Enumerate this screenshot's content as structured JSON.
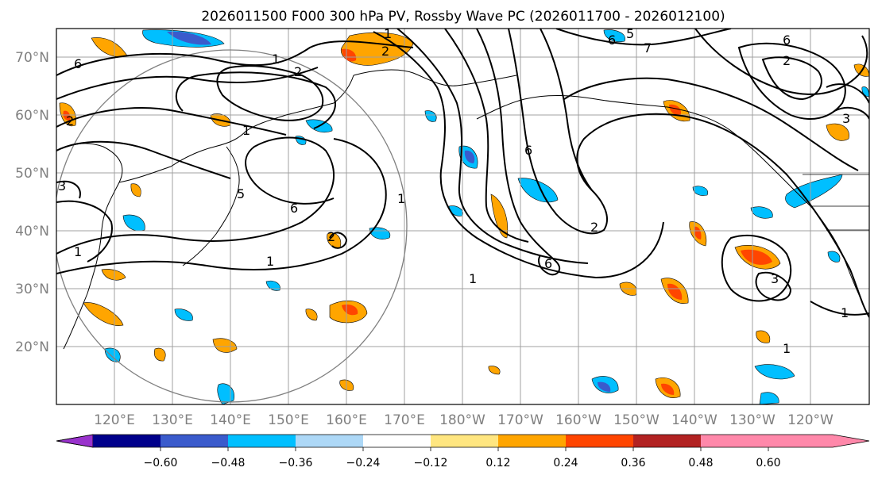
{
  "title": "2026011500 F000 300 hPa PV, Rossby Wave PC (2026011700 - 2026012100)",
  "map": {
    "lat_ticks": [
      {
        "label": "70°N",
        "value": 70
      },
      {
        "label": "60°N",
        "value": 60
      },
      {
        "label": "50°N",
        "value": 50
      },
      {
        "label": "40°N",
        "value": 40
      },
      {
        "label": "30°N",
        "value": 30
      },
      {
        "label": "20°N",
        "value": 20
      }
    ],
    "lon_ticks": [
      {
        "label": "120°E",
        "value": 120
      },
      {
        "label": "130°E",
        "value": 130
      },
      {
        "label": "140°E",
        "value": 140
      },
      {
        "label": "150°E",
        "value": 150
      },
      {
        "label": "160°E",
        "value": 160
      },
      {
        "label": "170°E",
        "value": 170
      },
      {
        "label": "180°W",
        "value": 180
      },
      {
        "label": "170°W",
        "value": 190
      },
      {
        "label": "160°W",
        "value": 200
      },
      {
        "label": "150°W",
        "value": 210
      },
      {
        "label": "140°W",
        "value": 220
      },
      {
        "label": "130°W",
        "value": 230
      },
      {
        "label": "120°W",
        "value": 240
      }
    ],
    "lon_range": [
      112,
      253
    ],
    "lat_range": [
      10,
      75
    ],
    "contour_labels": [
      "1",
      "2",
      "6",
      "1",
      "2",
      "1",
      "6",
      "1",
      "1",
      "6",
      "1",
      "2",
      "3",
      "1",
      "3",
      "2",
      "7",
      "5",
      "6",
      "2",
      "6",
      "1",
      "6",
      "2",
      "5",
      "1",
      "3"
    ]
  },
  "colorbar": {
    "colors": [
      "#9932cc",
      "#00008b",
      "#3a5bcc",
      "#00bfff",
      "#add8f7",
      "#ffffff",
      "#ffe680",
      "#ffa500",
      "#ff4500",
      "#b22222",
      "#ff88aa"
    ],
    "ticks": [
      "−0.60",
      "−0.48",
      "−0.36",
      "−0.24",
      "−0.12",
      "0.12",
      "0.24",
      "0.36",
      "0.48",
      "0.60"
    ]
  },
  "colors": {
    "orange": "#ffa500",
    "red_orange": "#ff4500",
    "light_yellow": "#ffe680",
    "deep_sky_blue": "#00bfff",
    "royal_blue": "#3a5bcc",
    "light_blue": "#add8f7"
  }
}
